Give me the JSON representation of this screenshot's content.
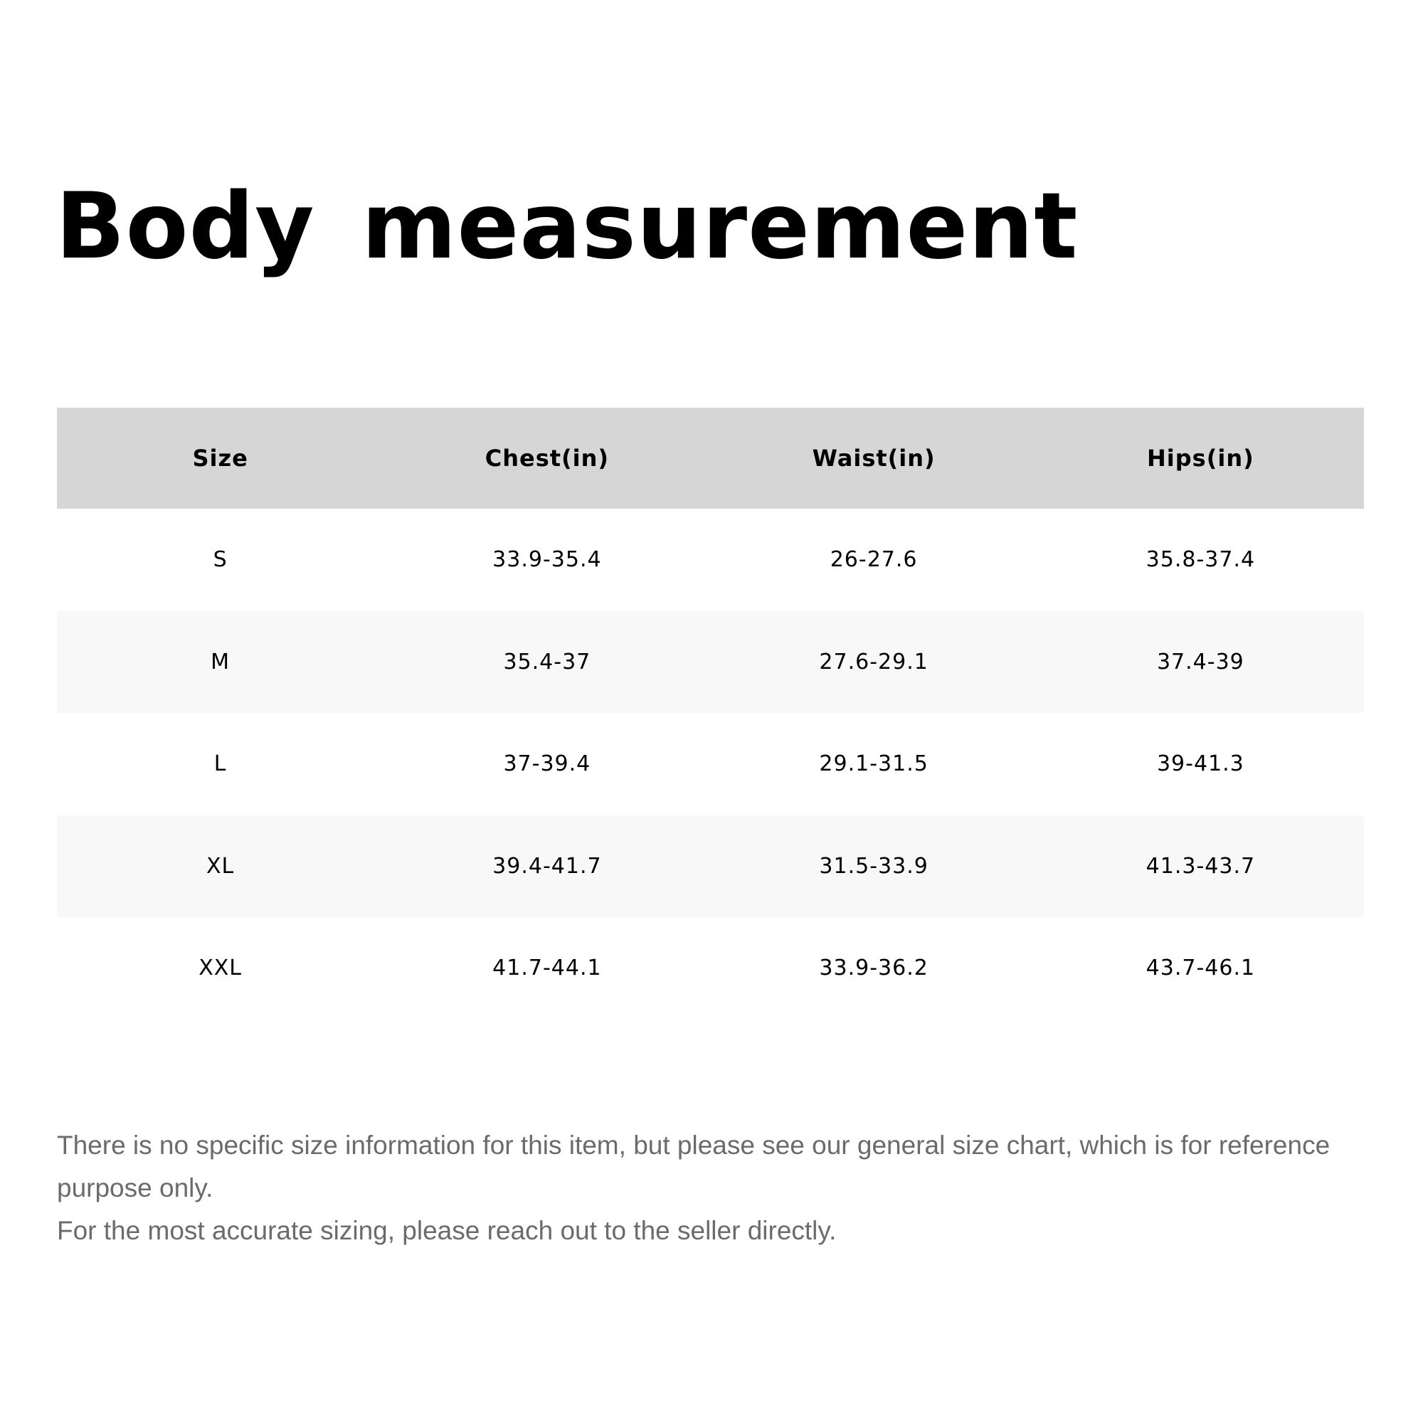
{
  "title": "Body  measurement",
  "table": {
    "headers": [
      "Size",
      "Chest(in)",
      "Waist(in)",
      "Hips(in)"
    ],
    "rows": [
      [
        "S",
        "33.9-35.4",
        "26-27.6",
        "35.8-37.4"
      ],
      [
        "M",
        "35.4-37",
        "27.6-29.1",
        "37.4-39"
      ],
      [
        "L",
        "37-39.4",
        "29.1-31.5",
        "39-41.3"
      ],
      [
        "XL",
        "39.4-41.7",
        "31.5-33.9",
        "41.3-43.7"
      ],
      [
        "XXL",
        "41.7-44.1",
        "33.9-36.2",
        "43.7-46.1"
      ]
    ]
  },
  "note": {
    "line1": "There is no specific size information for this item, but please see our general size chart, which is for reference purpose only.",
    "line2": "For the most accurate sizing, please reach out to the seller directly."
  },
  "colors": {
    "header_bg": "#d6d6d6",
    "stripe_bg": "#f8f8f8",
    "note_text": "#6b6b6b"
  }
}
